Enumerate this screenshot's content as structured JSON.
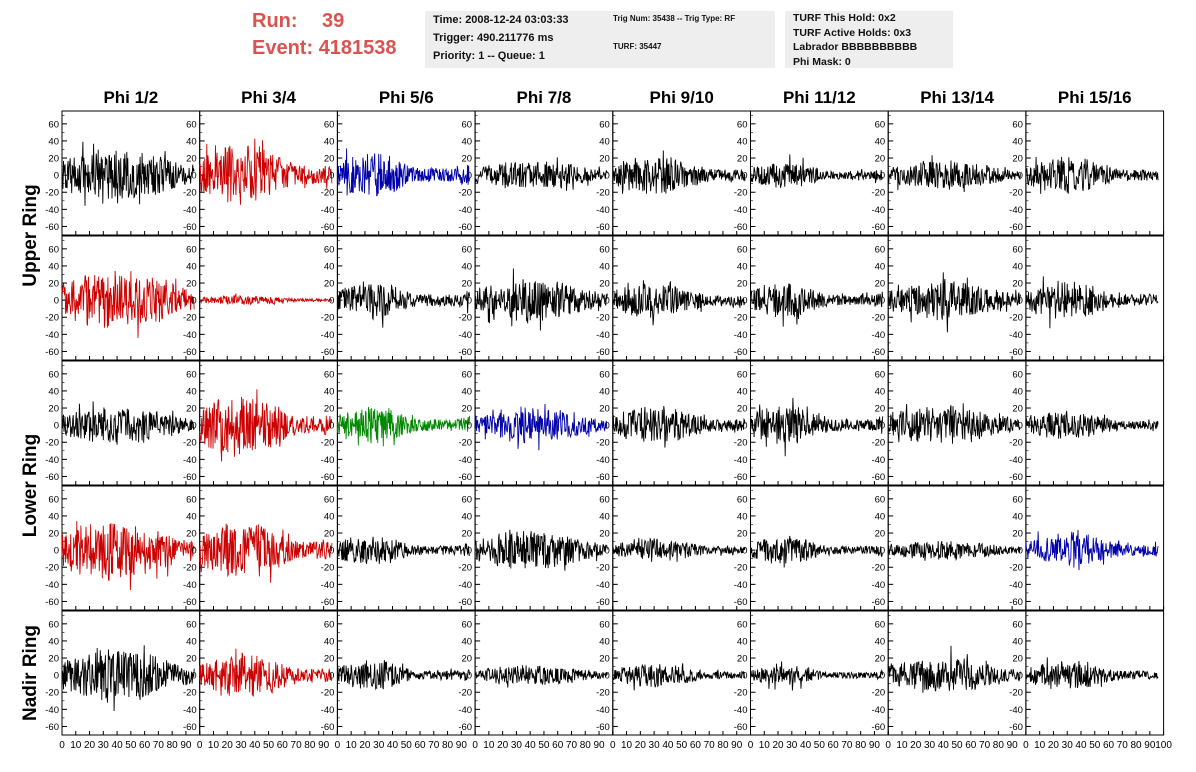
{
  "header": {
    "run_label": "Run:",
    "run_value": "39",
    "event_label": "Event:",
    "event_value": "4181538",
    "time": "Time: 2008-12-24 03:03:33",
    "trigger": "Trigger: 490.211776 ms",
    "priority": "Priority: 1 -- Queue: 1",
    "trig_num": "Trig Num: 35438 -- Trig Type: RF",
    "turf": "TURF: 35447",
    "turf_this_hold": "TURF This Hold: 0x2",
    "turf_active_holds": "TURF Active Holds: 0x3",
    "labrador": "Labrador BBBBBBBBBB",
    "phi_mask": "Phi Mask: 0"
  },
  "chart_data": {
    "type": "line",
    "title": "",
    "columns": [
      "Phi 1/2",
      "Phi 3/4",
      "Phi 5/6",
      "Phi 7/8",
      "Phi 9/10",
      "Phi 11/12",
      "Phi 13/14",
      "Phi 15/16"
    ],
    "rings": [
      "Upper Ring",
      "Lower Ring",
      "Nadir Ring"
    ],
    "xlim": [
      0,
      100
    ],
    "ylim": [
      -70,
      75
    ],
    "yticks": [
      -60,
      -40,
      -20,
      0,
      20,
      40,
      60
    ],
    "xticks": [
      0,
      10,
      20,
      30,
      40,
      50,
      60,
      70,
      80,
      90,
      100
    ],
    "xtick_labels": [
      "0",
      "10",
      "20",
      "30",
      "40",
      "50",
      "60",
      "70",
      "80",
      "90",
      "100"
    ],
    "grid": false,
    "colors": {
      "black": "#000000",
      "red": "#cc0000",
      "blue": "#0000aa",
      "green": "#008800"
    },
    "panel_colors": [
      [
        "black",
        "red",
        "blue",
        "black",
        "black",
        "black",
        "black",
        "black"
      ],
      [
        "red",
        "red",
        "black",
        "black",
        "black",
        "black",
        "black",
        "black"
      ],
      [
        "black",
        "red",
        "green",
        "blue",
        "black",
        "black",
        "black",
        "black"
      ],
      [
        "red",
        "red",
        "black",
        "black",
        "black",
        "black",
        "black",
        "blue"
      ],
      [
        "black",
        "red",
        "black",
        "black",
        "black",
        "black",
        "black",
        "black"
      ]
    ],
    "panel_amplitudes": [
      [
        28,
        32,
        24,
        15,
        20,
        14,
        15,
        18
      ],
      [
        32,
        5,
        20,
        22,
        18,
        18,
        20,
        20
      ],
      [
        20,
        32,
        20,
        18,
        20,
        20,
        20,
        14
      ],
      [
        30,
        30,
        16,
        20,
        12,
        14,
        10,
        18
      ],
      [
        28,
        22,
        16,
        10,
        12,
        10,
        18,
        14
      ]
    ],
    "waveform_samples_per_panel": 260
  }
}
